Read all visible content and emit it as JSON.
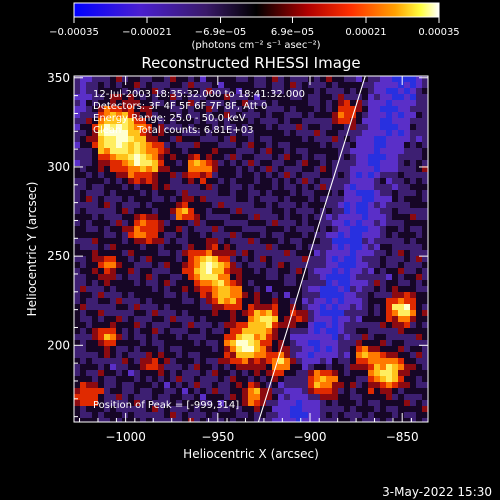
{
  "chart_data": {
    "type": "heatmap",
    "title": "Reconstructed RHESSI Image",
    "xlabel": "Heliocentric X (arcsec)",
    "ylabel": "Heliocentric Y (arcsec)",
    "xlim": [
      -1028,
      -836
    ],
    "ylim": [
      157,
      351
    ],
    "xticks": [
      -1000,
      -950,
      -900,
      -850
    ],
    "xtick_labels": [
      "−1000",
      "−950",
      "−900",
      "−850"
    ],
    "yticks": [
      200,
      250,
      300,
      350
    ],
    "ytick_labels": [
      "200",
      "250",
      "300",
      "350"
    ],
    "colorbar": {
      "ticks": [
        -0.00035,
        -0.00021,
        -6.9e-05,
        6.9e-05,
        0.00021,
        0.00035
      ],
      "tick_labels": [
        "−0.00035",
        "−0.00021",
        "−6.9e−05",
        "6.9e−05",
        "0.00021",
        "0.00035"
      ],
      "units_label": "(photons cm⁻² s⁻¹ asec⁻²)",
      "colormap": [
        "#0000ff",
        "#8a2be2",
        "#000000",
        "#ff0000",
        "#ff8c00",
        "#ffff00",
        "#ffffff"
      ]
    },
    "annotations": [
      "12-Jul-2003 18:35:32.000 to 18:41:32.000",
      "Detectors: 3F 4F 5F 6F 7F 8F, Att 0",
      "Energy Range: 25.0 - 50.0 keV",
      "Clean     Total counts: 6.81E+03"
    ],
    "peak_label": "Position of Peak = [-999,314]",
    "limb_curve": [
      [
        -928,
        157
      ],
      [
        -912,
        210
      ],
      [
        -896,
        265
      ],
      [
        -880,
        318
      ],
      [
        -870,
        351
      ]
    ],
    "footer_date": "3-May-2022 15:30"
  }
}
